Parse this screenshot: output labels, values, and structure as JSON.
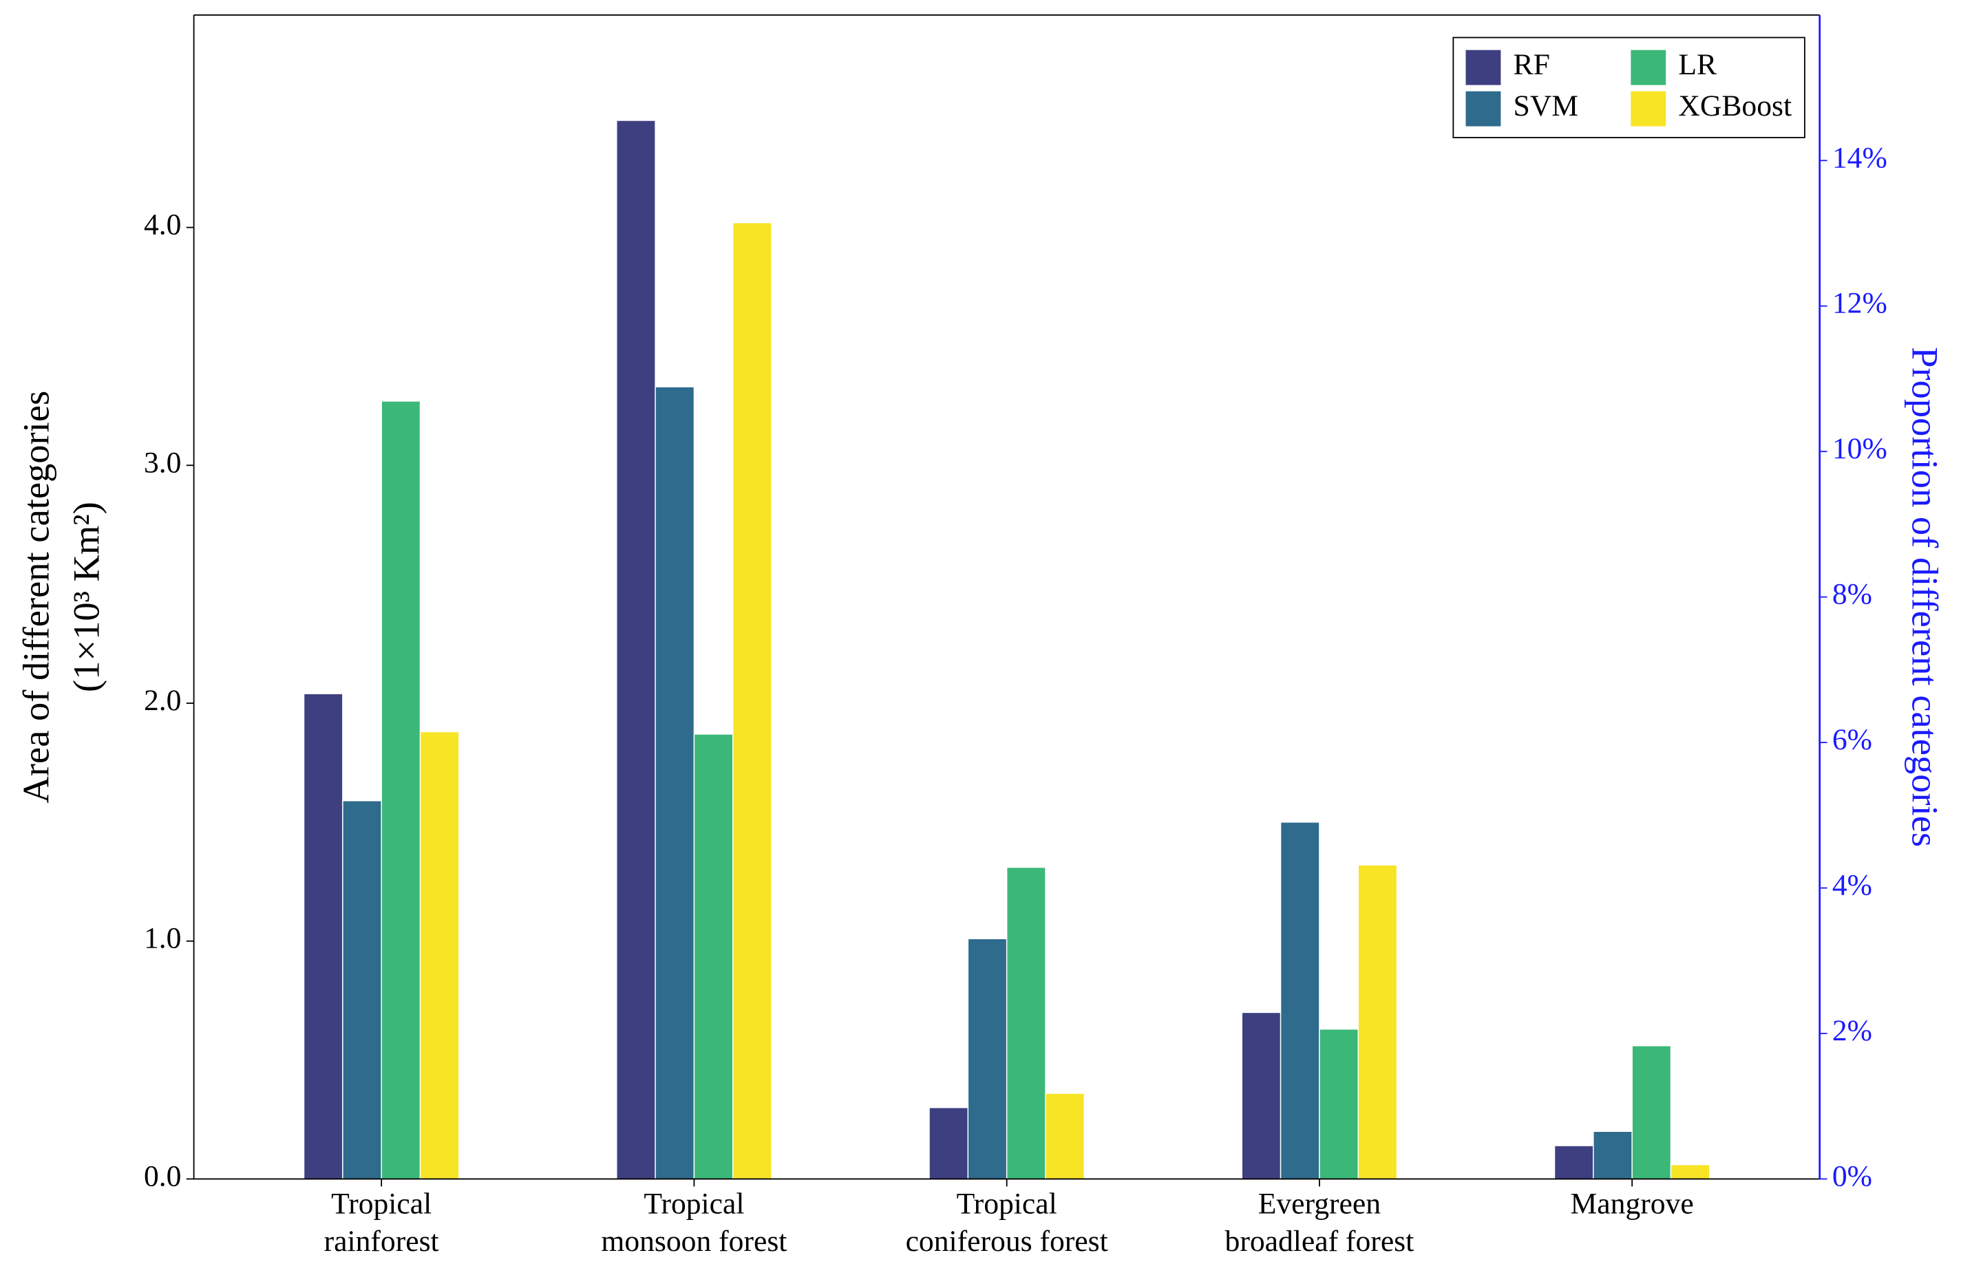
{
  "chart_data": {
    "type": "bar",
    "categories": [
      "Tropical rainforest",
      "Tropical monsoon forest",
      "Tropical coniferous forest",
      "Evergreen broadleaf forest",
      "Mangrove"
    ],
    "series": [
      {
        "name": "RF",
        "color": "#3e3f80",
        "values": [
          2.04,
          4.45,
          0.3,
          0.7,
          0.14
        ]
      },
      {
        "name": "SVM",
        "color": "#2e6b8c",
        "values": [
          1.59,
          3.33,
          1.01,
          1.5,
          0.2
        ]
      },
      {
        "name": "LR",
        "color": "#3bb877",
        "values": [
          3.27,
          1.87,
          1.31,
          0.63,
          0.56
        ]
      },
      {
        "name": "XGBoost",
        "color": "#f7e425",
        "values": [
          1.88,
          4.02,
          0.36,
          1.32,
          0.06
        ]
      }
    ],
    "ylabel": [
      "Area of different categories",
      "(1×10³ Km²)"
    ],
    "y2label": "Proportion of different categories",
    "y2color": "#1a1aff",
    "ylim": [
      0,
      4.893
    ],
    "yticks": [
      {
        "value": 0,
        "label": "0.0"
      },
      {
        "value": 1,
        "label": "1.0"
      },
      {
        "value": 2,
        "label": "2.0"
      },
      {
        "value": 3,
        "label": "3.0"
      },
      {
        "value": 4,
        "label": "4.0"
      }
    ],
    "y2lim": [
      0,
      16
    ],
    "y2ticks": [
      {
        "value": 0,
        "label": "0%"
      },
      {
        "value": 2,
        "label": "2%"
      },
      {
        "value": 4,
        "label": "4%"
      },
      {
        "value": 6,
        "label": "6%"
      },
      {
        "value": 8,
        "label": "8%"
      },
      {
        "value": 10,
        "label": "10%"
      },
      {
        "value": 12,
        "label": "12%"
      },
      {
        "value": 14,
        "label": "14%"
      }
    ],
    "legend": "upper right",
    "grid": false
  }
}
